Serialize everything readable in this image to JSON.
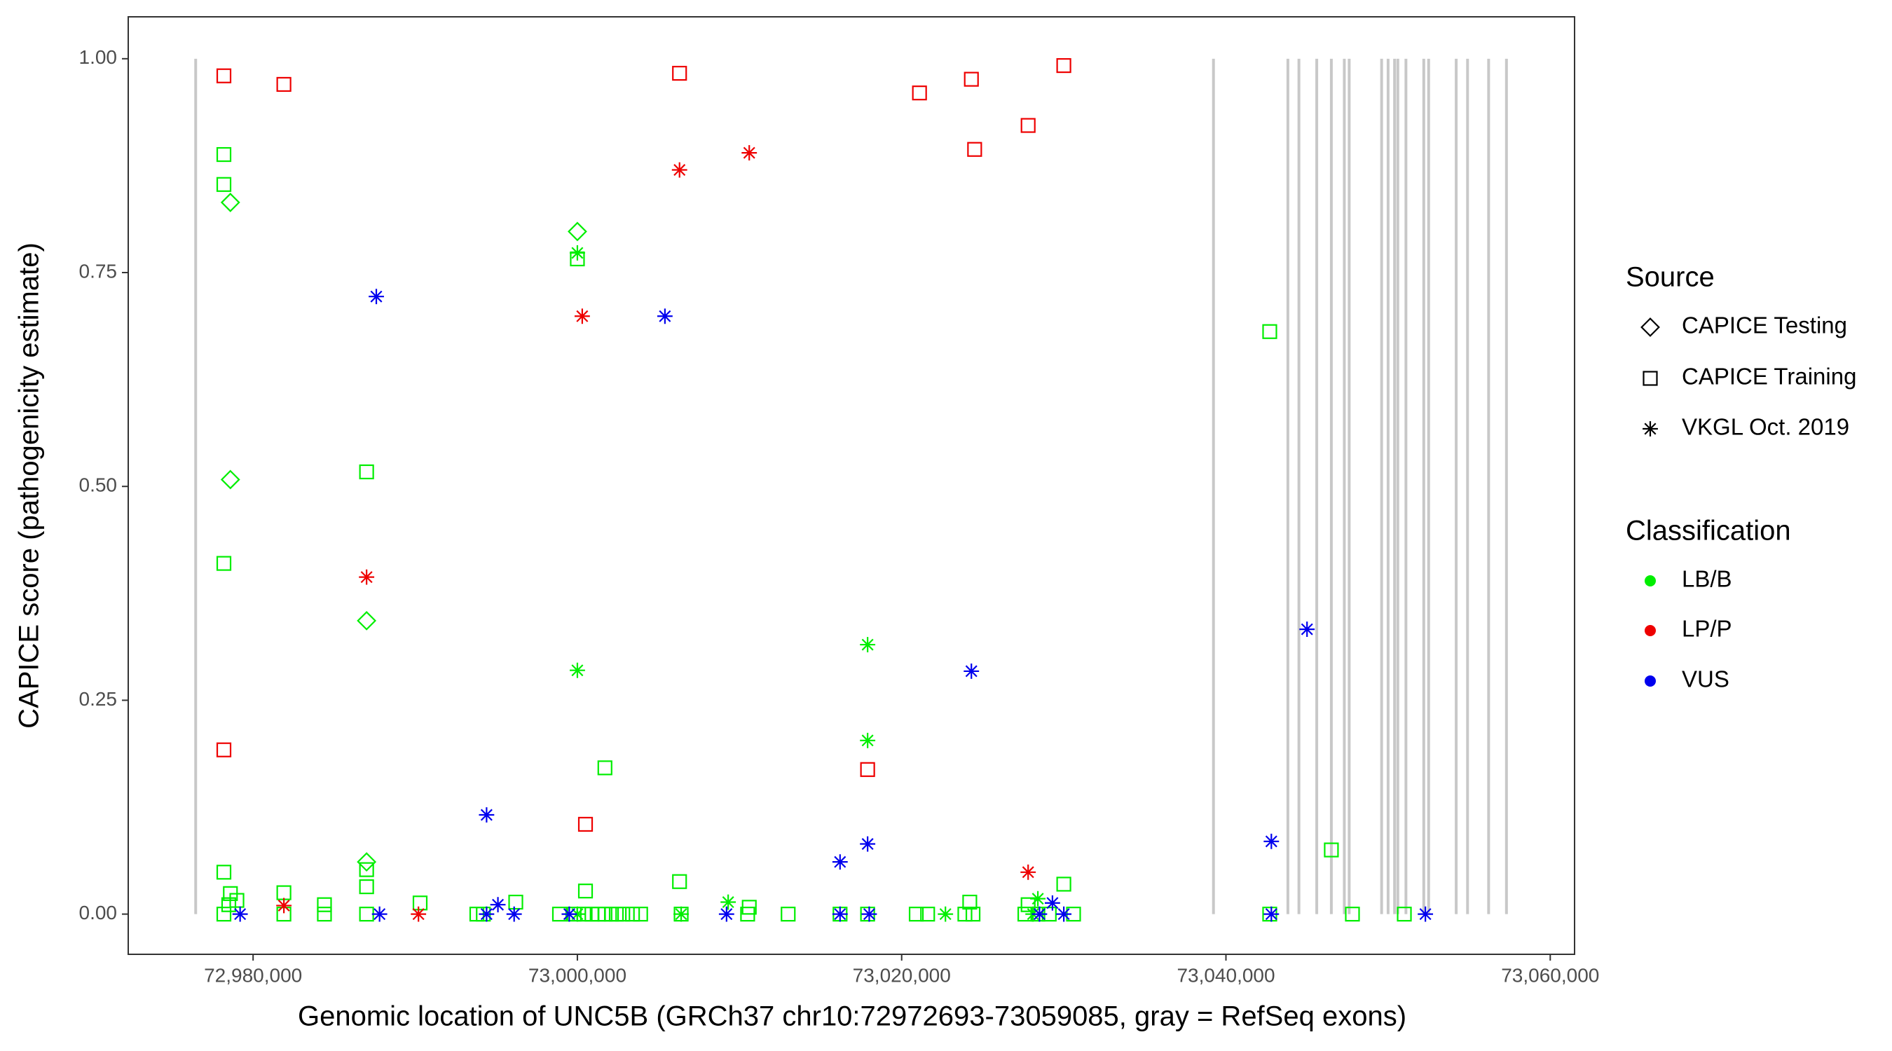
{
  "chart_data": {
    "type": "scatter",
    "x_label": "Genomic location of UNC5B (GRCh37 chr10:72972693-73059085, gray = RefSeq exons)",
    "y_label": "CAPICE score (pathogenicity estimate)",
    "xlim": [
      72972300,
      73061500
    ],
    "ylim": [
      -0.047,
      1.049
    ],
    "xticks": [
      {
        "value": 72980000,
        "label": "72,980,000"
      },
      {
        "value": 73000000,
        "label": "73,000,000"
      },
      {
        "value": 73020000,
        "label": "73,020,000"
      },
      {
        "value": 73040000,
        "label": "73,040,000"
      },
      {
        "value": 73060000,
        "label": "73,060,000"
      }
    ],
    "yticks": [
      {
        "value": 0,
        "label": "0.00"
      },
      {
        "value": 0.25,
        "label": "0.25"
      },
      {
        "value": 0.5,
        "label": "0.50"
      },
      {
        "value": 0.75,
        "label": "0.75"
      },
      {
        "value": 1,
        "label": "1.00"
      }
    ],
    "exon_color": "#c8c8c8",
    "exons": [
      72976460,
      73039230,
      73043820,
      73044500,
      73045600,
      73046500,
      73047300,
      73047600,
      73049600,
      73050000,
      73050400,
      73050600,
      73051100,
      73052200,
      73052500,
      73054200,
      73054900,
      73056200,
      73057300
    ],
    "legends": [
      {
        "title": "Source",
        "entries": [
          {
            "label": "CAPICE Testing",
            "shape": "diamond"
          },
          {
            "label": "CAPICE Training",
            "shape": "square"
          },
          {
            "label": "VKGL Oct. 2019",
            "shape": "star"
          }
        ]
      },
      {
        "title": "Classification",
        "entries": [
          {
            "label": "LB/B",
            "color": "#00ee00"
          },
          {
            "label": "LP/P",
            "color": "#ee0000"
          },
          {
            "label": "VUS",
            "color": "#0000ee"
          }
        ]
      }
    ],
    "series": [
      {
        "source": "CAPICE Training",
        "classification": "LB/B",
        "x": [
          72978200,
          72978200,
          72978200,
          72987000,
          73000000,
          73042700,
          73001700,
          72978200,
          72987000,
          72987000,
          73006300,
          73046500,
          73030000,
          73000500,
          72978600,
          72981900,
          73024200,
          72984400,
          72990300,
          72996200,
          72978500,
          72979000,
          73010600,
          73027800,
          72978200,
          72981900,
          72984400,
          72987000,
          72993800,
          72994200,
          72998900,
          72999800,
          73000400,
          73000900,
          73001300,
          73001700,
          73002100,
          73002400,
          73002800,
          73003400,
          73003900,
          73006400,
          73010500,
          73013000,
          73016200,
          73017900,
          73020900,
          73021600,
          73023900,
          73024400,
          73027600,
          73028400,
          73029100,
          73030600,
          73042700,
          73047800,
          73051000
        ],
        "y": [
          0.888,
          0.853,
          0.41,
          0.517,
          0.766,
          0.681,
          0.171,
          0.049,
          0.052,
          0.032,
          0.038,
          0.075,
          0.035,
          0.027,
          0.024,
          0.025,
          0.014,
          0.011,
          0.013,
          0.014,
          0.011,
          0.016,
          0.008,
          0.011,
          0,
          0,
          0,
          0,
          0,
          0,
          0,
          0,
          0,
          0,
          0,
          0,
          0,
          0,
          0,
          0,
          0,
          0,
          0,
          0,
          0,
          0,
          0,
          0,
          0,
          0,
          0,
          0,
          0,
          0,
          0,
          0,
          0
        ]
      },
      {
        "source": "CAPICE Training",
        "classification": "LP/P",
        "x": [
          72978200,
          72981900,
          73006300,
          73021100,
          73024300,
          73024500,
          73027800,
          73030000,
          72978200,
          73000500,
          73017900
        ],
        "y": [
          0.98,
          0.97,
          0.983,
          0.96,
          0.976,
          0.894,
          0.922,
          0.992,
          0.192,
          0.105,
          0.169
        ]
      },
      {
        "source": "CAPICE Testing",
        "classification": "LB/B",
        "x": [
          72978600,
          72978600,
          73000000,
          72987000,
          72987000
        ],
        "y": [
          0.832,
          0.508,
          0.798,
          0.343,
          0.061
        ]
      },
      {
        "source": "VKGL Oct. 2019",
        "classification": "LB/B",
        "x": [
          73000000,
          73000000,
          73017900,
          73017900,
          73028400,
          73009300,
          73000000,
          73006400,
          73022700,
          73028100
        ],
        "y": [
          0.773,
          0.285,
          0.315,
          0.203,
          0.018,
          0.014,
          0,
          0,
          0,
          0
        ]
      },
      {
        "source": "VKGL Oct. 2019",
        "classification": "LP/P",
        "x": [
          73006300,
          73010600,
          73000300,
          72987000,
          72981900,
          72990200,
          73027800
        ],
        "y": [
          0.87,
          0.89,
          0.699,
          0.394,
          0.01,
          0,
          0.049
        ]
      },
      {
        "source": "VKGL Oct. 2019",
        "classification": "VUS",
        "x": [
          72987600,
          73005400,
          73045000,
          73024300,
          72994400,
          73016200,
          73017900,
          73042800,
          73029300,
          72995100,
          72979200,
          72987800,
          72994400,
          72996100,
          72999500,
          73009200,
          73016200,
          73018000,
          73028500,
          73030000,
          73042800,
          73052300
        ],
        "y": [
          0.722,
          0.699,
          0.333,
          0.284,
          0.116,
          0.061,
          0.082,
          0.085,
          0.013,
          0.011,
          0,
          0,
          0,
          0,
          0,
          0,
          0,
          0,
          0,
          0,
          0,
          0
        ]
      }
    ]
  }
}
